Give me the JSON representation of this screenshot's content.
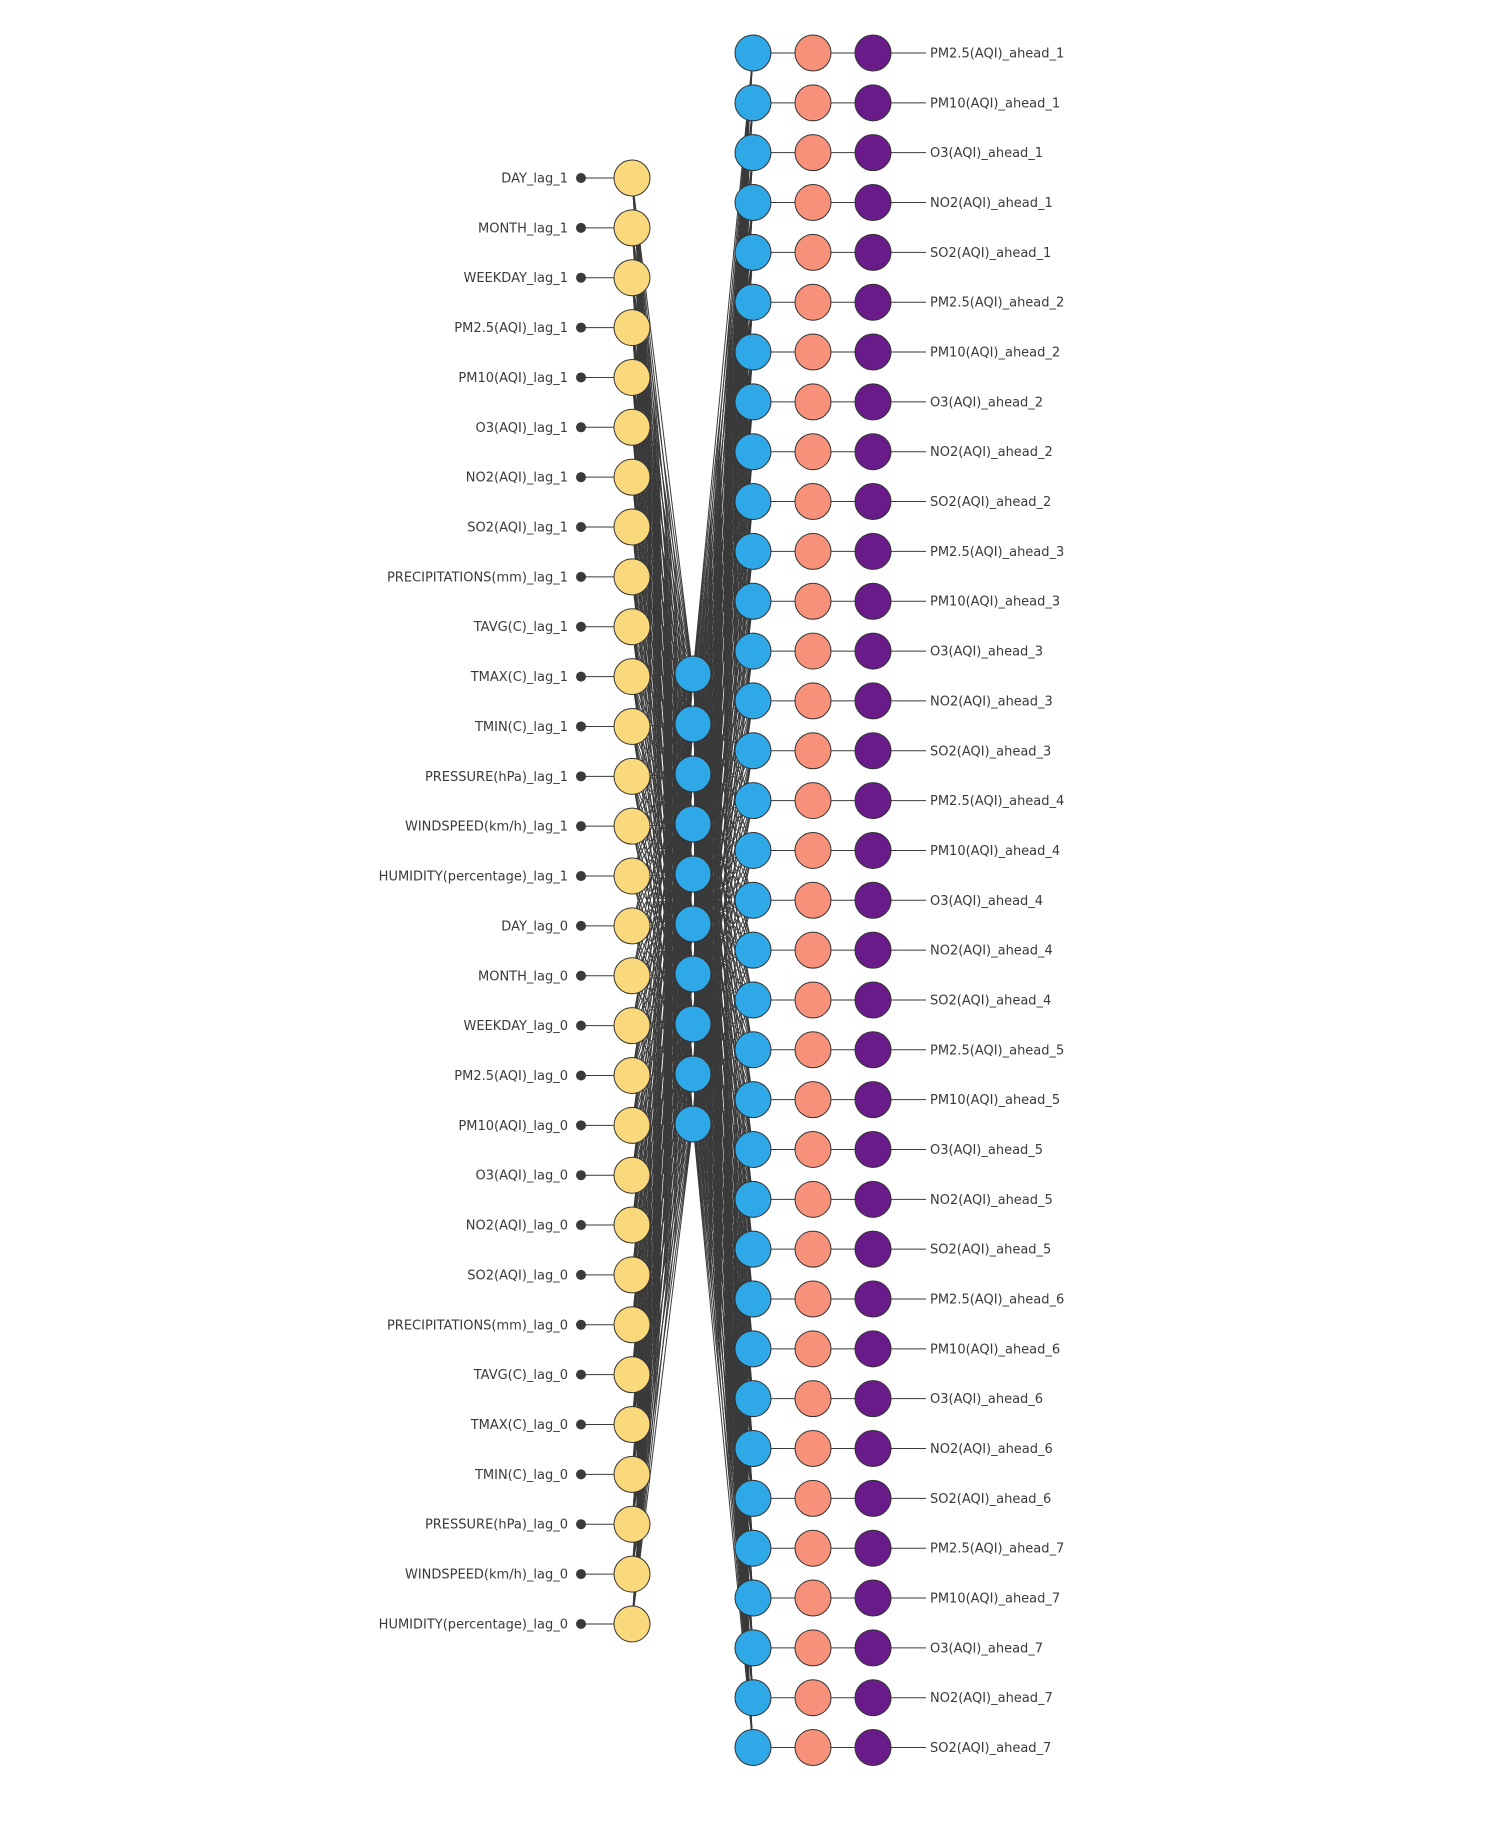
{
  "colors": {
    "input_node": "#fad87c",
    "hidden_node": "#2ea8e6",
    "output_node_1": "#2ea8e6",
    "output_node_2": "#f7917a",
    "output_node_3": "#6a1b8a",
    "connection": "#3a3a3a",
    "node_stroke": "#333333"
  },
  "network": {
    "inputs": [
      "DAY_lag_1",
      "MONTH_lag_1",
      "WEEKDAY_lag_1",
      "PM2.5(AQI)_lag_1",
      "PM10(AQI)_lag_1",
      "O3(AQI)_lag_1",
      "NO2(AQI)_lag_1",
      "SO2(AQI)_lag_1",
      "PRECIPITATIONS(mm)_lag_1",
      "TAVG(C)_lag_1",
      "TMAX(C)_lag_1",
      "TMIN(C)_lag_1",
      "PRESSURE(hPa)_lag_1",
      "WINDSPEED(km/h)_lag_1",
      "HUMIDITY(percentage)_lag_1",
      "DAY_lag_0",
      "MONTH_lag_0",
      "WEEKDAY_lag_0",
      "PM2.5(AQI)_lag_0",
      "PM10(AQI)_lag_0",
      "O3(AQI)_lag_0",
      "NO2(AQI)_lag_0",
      "SO2(AQI)_lag_0",
      "PRECIPITATIONS(mm)_lag_0",
      "TAVG(C)_lag_0",
      "TMAX(C)_lag_0",
      "TMIN(C)_lag_0",
      "PRESSURE(hPa)_lag_0",
      "WINDSPEED(km/h)_lag_0",
      "HUMIDITY(percentage)_lag_0"
    ],
    "hidden_count": 10,
    "outputs": [
      "PM2.5(AQI)_ahead_1",
      "PM10(AQI)_ahead_1",
      "O3(AQI)_ahead_1",
      "NO2(AQI)_ahead_1",
      "SO2(AQI)_ahead_1",
      "PM2.5(AQI)_ahead_2",
      "PM10(AQI)_ahead_2",
      "O3(AQI)_ahead_2",
      "NO2(AQI)_ahead_2",
      "SO2(AQI)_ahead_2",
      "PM2.5(AQI)_ahead_3",
      "PM10(AQI)_ahead_3",
      "O3(AQI)_ahead_3",
      "NO2(AQI)_ahead_3",
      "SO2(AQI)_ahead_3",
      "PM2.5(AQI)_ahead_4",
      "PM10(AQI)_ahead_4",
      "O3(AQI)_ahead_4",
      "NO2(AQI)_ahead_4",
      "SO2(AQI)_ahead_4",
      "PM2.5(AQI)_ahead_5",
      "PM10(AQI)_ahead_5",
      "O3(AQI)_ahead_5",
      "NO2(AQI)_ahead_5",
      "SO2(AQI)_ahead_5",
      "PM2.5(AQI)_ahead_6",
      "PM10(AQI)_ahead_6",
      "O3(AQI)_ahead_6",
      "NO2(AQI)_ahead_6",
      "SO2(AQI)_ahead_6",
      "PM2.5(AQI)_ahead_7",
      "PM10(AQI)_ahead_7",
      "O3(AQI)_ahead_7",
      "NO2(AQI)_ahead_7",
      "SO2(AQI)_ahead_7"
    ]
  }
}
